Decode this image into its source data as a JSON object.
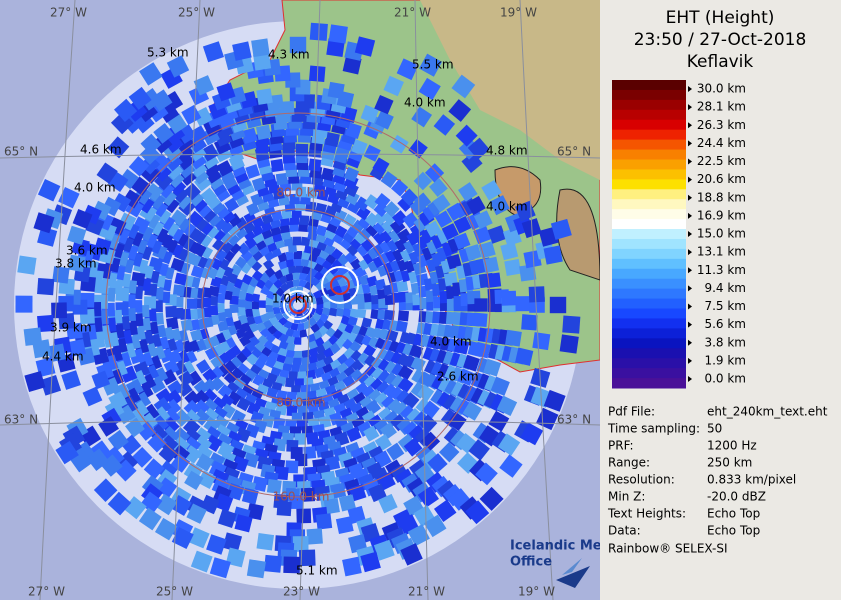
{
  "map": {
    "longitude_labels_top": [
      "27° W",
      "25° W",
      "21° W",
      "19° W"
    ],
    "longitude_labels_bottom": [
      "27° W",
      "25° W",
      "23° W",
      "21° W",
      "19° W"
    ],
    "latitude_labels_left": [
      "65° N",
      "63° N"
    ],
    "latitude_labels_right": [
      "65° N",
      "63° N"
    ],
    "range_labels": [
      "80.0 km",
      "80.0 km",
      "160.0 km"
    ],
    "echo_top_labels": [
      "5.3 km",
      "4.3 km",
      "5.5 km",
      "4.0 km",
      "4.6 km",
      "4.8 km",
      "4.0 km",
      "4.0 km",
      "3.6 km",
      "3.8 km",
      "3.9 km",
      "4.4 km",
      "1.0 km",
      "4.0 km",
      "2.6 km",
      "5.1 km"
    ]
  },
  "panel": {
    "title": [
      "EHT (Height)",
      "23:50 / 27-Oct-2018",
      "Keflavik"
    ],
    "legend": [
      "30.0 km",
      "28.1 km",
      "26.3 km",
      "24.4 km",
      "22.5 km",
      "20.6 km",
      "18.8 km",
      "16.9 km",
      "15.0 km",
      "13.1 km",
      "11.3 km",
      "9.4 km",
      "7.5 km",
      "5.6 km",
      "3.8 km",
      "1.9 km",
      "0.0 km"
    ],
    "info": [
      [
        "Pdf File:",
        "eht_240km_text.eht"
      ],
      [
        "Time sampling:",
        "50"
      ],
      [
        "PRF:",
        "1200 Hz"
      ],
      [
        "Range:",
        "250 km"
      ],
      [
        "Resolution:",
        "0.833 km/pixel"
      ],
      [
        "Min Z:",
        "-20.0 dBZ"
      ],
      [
        "Text Heights:",
        "Echo Top"
      ],
      [
        "Data:",
        "Echo Top"
      ]
    ],
    "footer": "Rainbow® SELEX-SI"
  },
  "logo": [
    "Icelandic Met",
    "Office"
  ]
}
